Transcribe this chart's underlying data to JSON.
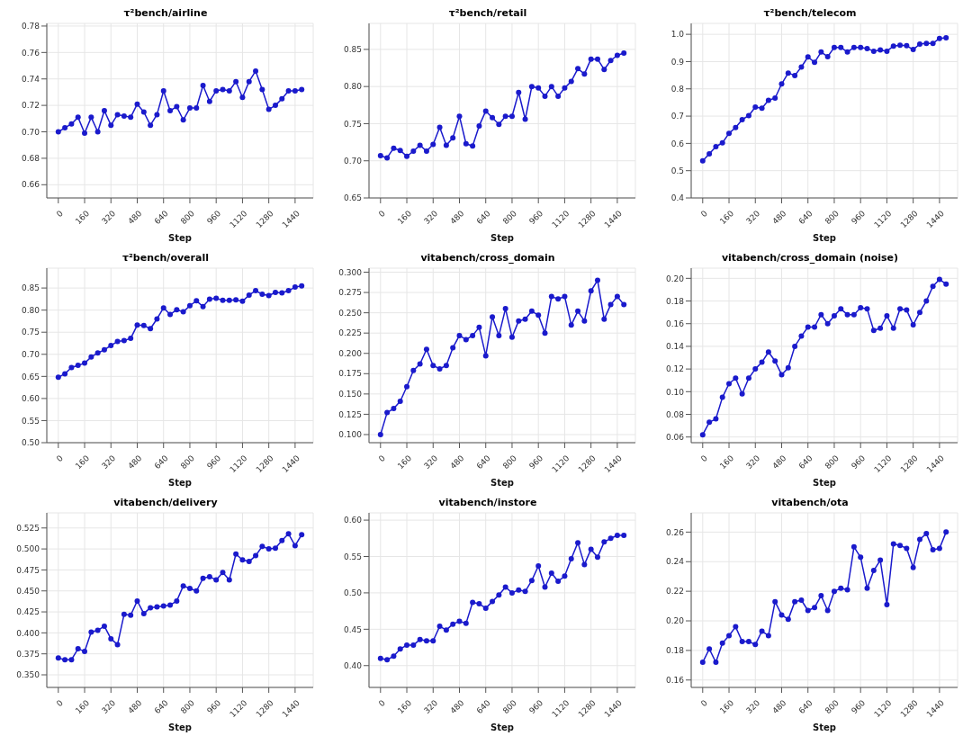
{
  "chart_data": [
    {
      "type": "line",
      "title": "τ²bench/airline",
      "xlabel": "Step",
      "color": "#1a1acc",
      "grid": true,
      "marker": "circle",
      "x": [
        0,
        40,
        80,
        120,
        160,
        200,
        240,
        280,
        320,
        360,
        400,
        440,
        480,
        520,
        560,
        600,
        640,
        680,
        720,
        760,
        800,
        840,
        880,
        920,
        960,
        1000,
        1040,
        1080,
        1120,
        1160,
        1200,
        1240,
        1280,
        1320,
        1360,
        1400,
        1440,
        1480
      ],
      "xlim": [
        -70,
        1550
      ],
      "xticks": [
        0,
        160,
        320,
        480,
        640,
        800,
        960,
        1120,
        1280,
        1440
      ],
      "ylim": [
        0.65,
        0.782
      ],
      "yticks": [
        {
          "value": 0.66,
          "label": "0.66"
        },
        {
          "value": 0.68,
          "label": "0.68"
        },
        {
          "value": 0.7,
          "label": "0.70"
        },
        {
          "value": 0.72,
          "label": "0.72"
        },
        {
          "value": 0.74,
          "label": "0.74"
        },
        {
          "value": 0.76,
          "label": "0.76"
        },
        {
          "value": 0.78,
          "label": "0.78"
        }
      ],
      "values": [
        0.7,
        0.703,
        0.706,
        0.711,
        0.699,
        0.711,
        0.7,
        0.716,
        0.705,
        0.713,
        0.712,
        0.711,
        0.721,
        0.715,
        0.705,
        0.713,
        0.731,
        0.716,
        0.719,
        0.709,
        0.718,
        0.718,
        0.735,
        0.723,
        0.731,
        0.732,
        0.731,
        0.738,
        0.726,
        0.738,
        0.746,
        0.732,
        0.717,
        0.72,
        0.725,
        0.731,
        0.731,
        0.732
      ]
    },
    {
      "type": "line",
      "title": "τ²bench/retail",
      "xlabel": "Step",
      "color": "#1a1acc",
      "grid": true,
      "marker": "circle",
      "x": [
        0,
        40,
        80,
        120,
        160,
        200,
        240,
        280,
        320,
        360,
        400,
        440,
        480,
        520,
        560,
        600,
        640,
        680,
        720,
        760,
        800,
        840,
        880,
        920,
        960,
        1000,
        1040,
        1080,
        1120,
        1160,
        1200,
        1240,
        1280,
        1320,
        1360,
        1400,
        1440,
        1480
      ],
      "xlim": [
        -70,
        1550
      ],
      "xticks": [
        0,
        160,
        320,
        480,
        640,
        800,
        960,
        1120,
        1280,
        1440
      ],
      "ylim": [
        0.65,
        0.885
      ],
      "yticks": [
        {
          "value": 0.65,
          "label": "0.65"
        },
        {
          "value": 0.7,
          "label": "0.70"
        },
        {
          "value": 0.75,
          "label": "0.75"
        },
        {
          "value": 0.8,
          "label": "0.80"
        },
        {
          "value": 0.85,
          "label": "0.85"
        }
      ],
      "values": [
        0.707,
        0.704,
        0.717,
        0.714,
        0.706,
        0.713,
        0.721,
        0.713,
        0.722,
        0.745,
        0.721,
        0.731,
        0.76,
        0.723,
        0.72,
        0.747,
        0.767,
        0.758,
        0.749,
        0.76,
        0.76,
        0.792,
        0.756,
        0.8,
        0.798,
        0.787,
        0.8,
        0.787,
        0.798,
        0.807,
        0.824,
        0.817,
        0.837,
        0.837,
        0.823,
        0.835,
        0.842,
        0.845
      ]
    },
    {
      "type": "line",
      "title": "τ²bench/telecom",
      "xlabel": "Step",
      "color": "#1a1acc",
      "grid": true,
      "marker": "circle",
      "x": [
        0,
        40,
        80,
        120,
        160,
        200,
        240,
        280,
        320,
        360,
        400,
        440,
        480,
        520,
        560,
        600,
        640,
        680,
        720,
        760,
        800,
        840,
        880,
        920,
        960,
        1000,
        1040,
        1080,
        1120,
        1160,
        1200,
        1240,
        1280,
        1320,
        1360,
        1400,
        1440,
        1480
      ],
      "xlim": [
        -70,
        1550
      ],
      "xticks": [
        0,
        160,
        320,
        480,
        640,
        800,
        960,
        1120,
        1280,
        1440
      ],
      "ylim": [
        0.4,
        1.04
      ],
      "yticks": [
        0.4,
        0.5,
        0.6,
        0.7,
        0.8,
        0.9,
        {
          "value": 1,
          "label": "1.0"
        }
      ],
      "values": [
        0.536,
        0.562,
        0.588,
        0.602,
        0.637,
        0.658,
        0.687,
        0.702,
        0.733,
        0.729,
        0.758,
        0.766,
        0.818,
        0.858,
        0.849,
        0.88,
        0.917,
        0.897,
        0.935,
        0.918,
        0.952,
        0.952,
        0.935,
        0.952,
        0.952,
        0.948,
        0.938,
        0.943,
        0.938,
        0.957,
        0.96,
        0.958,
        0.944,
        0.964,
        0.967,
        0.967,
        0.985,
        0.987
      ]
    },
    {
      "type": "line",
      "title": "τ²bench/overall",
      "xlabel": "Step",
      "color": "#1a1acc",
      "grid": true,
      "marker": "circle",
      "x": [
        0,
        40,
        80,
        120,
        160,
        200,
        240,
        280,
        320,
        360,
        400,
        440,
        480,
        520,
        560,
        600,
        640,
        680,
        720,
        760,
        800,
        840,
        880,
        920,
        960,
        1000,
        1040,
        1080,
        1120,
        1160,
        1200,
        1240,
        1280,
        1320,
        1360,
        1400,
        1440,
        1480
      ],
      "xlim": [
        -70,
        1550
      ],
      "xticks": [
        0,
        160,
        320,
        480,
        640,
        800,
        960,
        1120,
        1280,
        1440
      ],
      "ylim": [
        0.5,
        0.895
      ],
      "yticks": [
        {
          "value": 0.5,
          "label": "0.50"
        },
        {
          "value": 0.55,
          "label": "0.55"
        },
        {
          "value": 0.6,
          "label": "0.60"
        },
        {
          "value": 0.65,
          "label": "0.65"
        },
        {
          "value": 0.7,
          "label": "0.70"
        },
        {
          "value": 0.75,
          "label": "0.75"
        },
        {
          "value": 0.8,
          "label": "0.80"
        },
        {
          "value": 0.85,
          "label": "0.85"
        }
      ],
      "values": [
        0.648,
        0.656,
        0.67,
        0.675,
        0.68,
        0.694,
        0.703,
        0.71,
        0.72,
        0.729,
        0.731,
        0.736,
        0.766,
        0.765,
        0.758,
        0.78,
        0.805,
        0.79,
        0.801,
        0.796,
        0.81,
        0.821,
        0.808,
        0.825,
        0.827,
        0.822,
        0.822,
        0.823,
        0.82,
        0.834,
        0.844,
        0.836,
        0.833,
        0.84,
        0.839,
        0.844,
        0.852,
        0.855
      ]
    },
    {
      "type": "line",
      "title": "vitabench/cross_domain",
      "xlabel": "Step",
      "color": "#1a1acc",
      "grid": true,
      "marker": "circle",
      "x": [
        0,
        40,
        80,
        120,
        160,
        200,
        240,
        280,
        320,
        360,
        400,
        440,
        480,
        520,
        560,
        600,
        640,
        680,
        720,
        760,
        800,
        840,
        880,
        920,
        960,
        1000,
        1040,
        1080,
        1120,
        1160,
        1200,
        1240,
        1280,
        1320,
        1360,
        1400,
        1440,
        1480
      ],
      "xlim": [
        -70,
        1550
      ],
      "xticks": [
        0,
        160,
        320,
        480,
        640,
        800,
        960,
        1120,
        1280,
        1440
      ],
      "ylim": [
        0.09,
        0.305
      ],
      "yticks": [
        {
          "value": 0.1,
          "label": "0.100"
        },
        0.125,
        {
          "value": 0.15,
          "label": "0.150"
        },
        0.175,
        {
          "value": 0.2,
          "label": "0.200"
        },
        0.225,
        {
          "value": 0.25,
          "label": "0.250"
        },
        0.275,
        {
          "value": 0.3,
          "label": "0.300"
        }
      ],
      "values": [
        0.1,
        0.127,
        0.132,
        0.141,
        0.159,
        0.179,
        0.187,
        0.205,
        0.185,
        0.181,
        0.185,
        0.207,
        0.222,
        0.217,
        0.222,
        0.232,
        0.197,
        0.245,
        0.222,
        0.255,
        0.22,
        0.24,
        0.242,
        0.252,
        0.247,
        0.225,
        0.27,
        0.267,
        0.27,
        0.235,
        0.252,
        0.24,
        0.277,
        0.29,
        0.242,
        0.26,
        0.27,
        0.26
      ]
    },
    {
      "type": "line",
      "title": "vitabench/cross_domain (noise)",
      "xlabel": "Step",
      "color": "#1a1acc",
      "grid": true,
      "marker": "circle",
      "x": [
        0,
        40,
        80,
        120,
        160,
        200,
        240,
        280,
        320,
        360,
        400,
        440,
        480,
        520,
        560,
        600,
        640,
        680,
        720,
        760,
        800,
        840,
        880,
        920,
        960,
        1000,
        1040,
        1080,
        1120,
        1160,
        1200,
        1240,
        1280,
        1320,
        1360,
        1400,
        1440,
        1480
      ],
      "xlim": [
        -70,
        1550
      ],
      "xticks": [
        0,
        160,
        320,
        480,
        640,
        800,
        960,
        1120,
        1280,
        1440
      ],
      "ylim": [
        0.055,
        0.209
      ],
      "yticks": [
        0.06,
        0.08,
        {
          "value": 0.1,
          "label": "0.10"
        },
        0.12,
        0.14,
        0.16,
        0.18,
        {
          "value": 0.2,
          "label": "0.20"
        }
      ],
      "values": [
        0.062,
        0.073,
        0.076,
        0.095,
        0.107,
        0.112,
        0.098,
        0.112,
        0.12,
        0.126,
        0.135,
        0.127,
        0.115,
        0.121,
        0.14,
        0.149,
        0.157,
        0.157,
        0.168,
        0.16,
        0.167,
        0.173,
        0.168,
        0.168,
        0.174,
        0.173,
        0.154,
        0.156,
        0.167,
        0.156,
        0.173,
        0.172,
        0.159,
        0.17,
        0.18,
        0.193,
        0.199,
        0.195
      ]
    },
    {
      "type": "line",
      "title": "vitabench/delivery",
      "xlabel": "Step",
      "color": "#1a1acc",
      "grid": true,
      "marker": "circle",
      "x": [
        0,
        40,
        80,
        120,
        160,
        200,
        240,
        280,
        320,
        360,
        400,
        440,
        480,
        520,
        560,
        600,
        640,
        680,
        720,
        760,
        800,
        840,
        880,
        920,
        960,
        1000,
        1040,
        1080,
        1120,
        1160,
        1200,
        1240,
        1280,
        1320,
        1360,
        1400,
        1440,
        1480
      ],
      "xlim": [
        -70,
        1550
      ],
      "xticks": [
        0,
        160,
        320,
        480,
        640,
        800,
        960,
        1120,
        1280,
        1440
      ],
      "ylim": [
        0.335,
        0.543
      ],
      "yticks": [
        {
          "value": 0.35,
          "label": "0.350"
        },
        0.375,
        {
          "value": 0.4,
          "label": "0.400"
        },
        0.425,
        {
          "value": 0.45,
          "label": "0.450"
        },
        0.475,
        {
          "value": 0.5,
          "label": "0.500"
        },
        0.525
      ],
      "values": [
        0.37,
        0.368,
        0.368,
        0.381,
        0.378,
        0.401,
        0.403,
        0.408,
        0.393,
        0.386,
        0.422,
        0.421,
        0.438,
        0.423,
        0.43,
        0.431,
        0.432,
        0.433,
        0.438,
        0.456,
        0.453,
        0.45,
        0.465,
        0.467,
        0.463,
        0.472,
        0.463,
        0.494,
        0.487,
        0.485,
        0.492,
        0.503,
        0.5,
        0.501,
        0.51,
        0.518,
        0.504,
        0.517
      ]
    },
    {
      "type": "line",
      "title": "vitabench/instore",
      "xlabel": "Step",
      "color": "#1a1acc",
      "grid": true,
      "marker": "circle",
      "x": [
        0,
        40,
        80,
        120,
        160,
        200,
        240,
        280,
        320,
        360,
        400,
        440,
        480,
        520,
        560,
        600,
        640,
        680,
        720,
        760,
        800,
        840,
        880,
        920,
        960,
        1000,
        1040,
        1080,
        1120,
        1160,
        1200,
        1240,
        1280,
        1320,
        1360,
        1400,
        1440,
        1480
      ],
      "xlim": [
        -70,
        1550
      ],
      "xticks": [
        0,
        160,
        320,
        480,
        640,
        800,
        960,
        1120,
        1280,
        1440
      ],
      "ylim": [
        0.37,
        0.61
      ],
      "yticks": [
        {
          "value": 0.4,
          "label": "0.40"
        },
        0.45,
        {
          "value": 0.5,
          "label": "0.50"
        },
        0.55,
        {
          "value": 0.6,
          "label": "0.60"
        }
      ],
      "values": [
        0.41,
        0.408,
        0.413,
        0.423,
        0.428,
        0.428,
        0.436,
        0.434,
        0.434,
        0.454,
        0.449,
        0.457,
        0.461,
        0.458,
        0.487,
        0.485,
        0.479,
        0.488,
        0.497,
        0.508,
        0.5,
        0.504,
        0.502,
        0.517,
        0.537,
        0.508,
        0.527,
        0.516,
        0.523,
        0.547,
        0.569,
        0.539,
        0.56,
        0.549,
        0.57,
        0.575,
        0.579,
        0.579
      ]
    },
    {
      "type": "line",
      "title": "vitabench/ota",
      "xlabel": "Step",
      "color": "#1a1acc",
      "grid": true,
      "marker": "circle",
      "x": [
        0,
        40,
        80,
        120,
        160,
        200,
        240,
        280,
        320,
        360,
        400,
        440,
        480,
        520,
        560,
        600,
        640,
        680,
        720,
        760,
        800,
        840,
        880,
        920,
        960,
        1000,
        1040,
        1080,
        1120,
        1160,
        1200,
        1240,
        1280,
        1320,
        1360,
        1400,
        1440,
        1480
      ],
      "xlim": [
        -70,
        1550
      ],
      "xticks": [
        0,
        160,
        320,
        480,
        640,
        800,
        960,
        1120,
        1280,
        1440
      ],
      "ylim": [
        0.155,
        0.273
      ],
      "yticks": [
        0.16,
        0.18,
        {
          "value": 0.2,
          "label": "0.20"
        },
        0.22,
        0.24,
        0.26
      ],
      "values": [
        0.172,
        0.181,
        0.172,
        0.185,
        0.19,
        0.196,
        0.186,
        0.186,
        0.184,
        0.193,
        0.19,
        0.213,
        0.204,
        0.201,
        0.213,
        0.214,
        0.207,
        0.209,
        0.217,
        0.207,
        0.22,
        0.222,
        0.221,
        0.25,
        0.243,
        0.222,
        0.234,
        0.241,
        0.211,
        0.252,
        0.251,
        0.249,
        0.236,
        0.255,
        0.259,
        0.248,
        0.249,
        0.26
      ]
    }
  ]
}
